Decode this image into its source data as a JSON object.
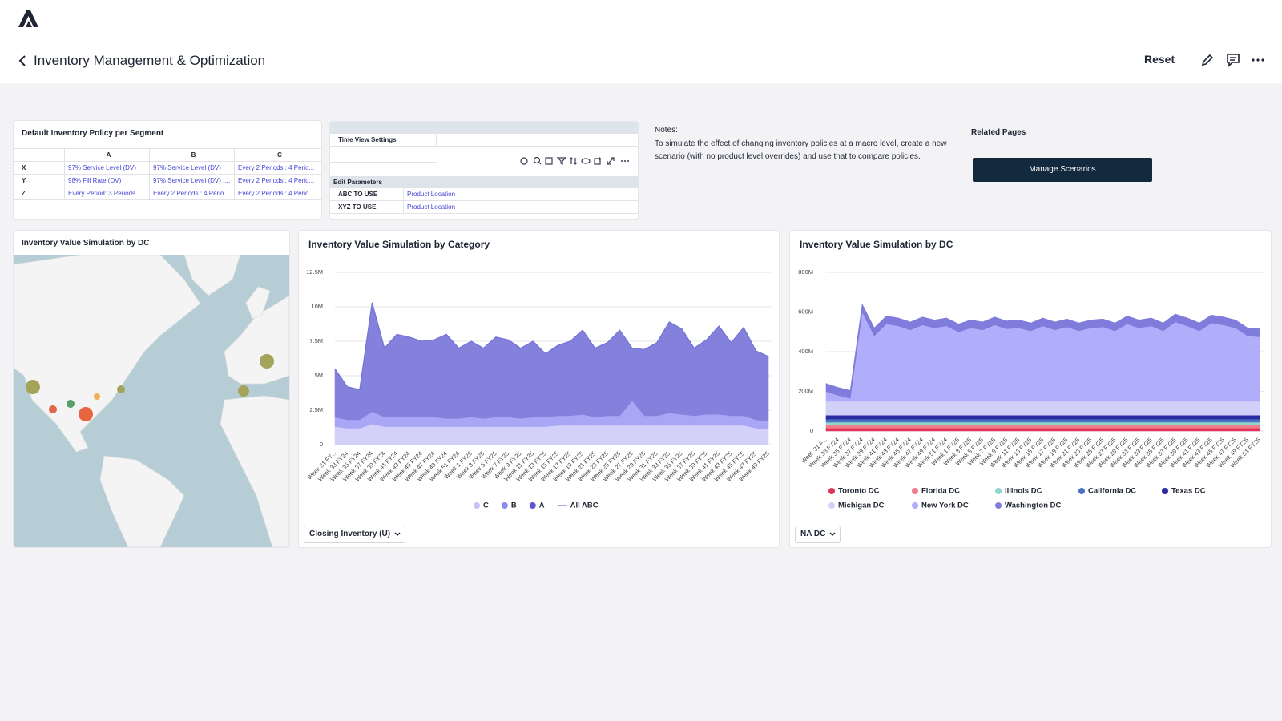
{
  "header": {
    "title": "Inventory Management & Optimization",
    "reset": "Reset"
  },
  "policy_table": {
    "title": "Default Inventory Policy per Segment",
    "columns": [
      "A",
      "B",
      "C"
    ],
    "rows": [
      {
        "segment": "X",
        "cells": [
          "97% Service Level (DV)",
          "97% Service Level (DV)",
          "Every 2 Periods : 4 Perio..."
        ]
      },
      {
        "segment": "Y",
        "cells": [
          "98% Fill Rate (DV)",
          "97% Service Level (DV) :...",
          "Every 2 Periods : 4 Perio..."
        ]
      },
      {
        "segment": "Z",
        "cells": [
          "Every Period: 3 Periods ...",
          "Every 2 Periods : 4 Perio...",
          "Every 2 Periods : 4 Perio..."
        ]
      }
    ]
  },
  "settings": {
    "time_view": "Time View Settings",
    "edit_parameters": "Edit Parameters",
    "parameters": [
      {
        "name": "ABC TO USE",
        "value": "Product Location"
      },
      {
        "name": "XYZ TO USE",
        "value": "Product Location"
      }
    ]
  },
  "notes": {
    "title": "Notes:",
    "text": "To simulate the effect of changing inventory policies at a macro level, create a new scenario (with no product level overrides) and use that to compare policies."
  },
  "related": {
    "title": "Related Pages",
    "button": "Manage Scenarios"
  },
  "map": {
    "title": "Inventory Value Simulation by DC"
  },
  "chart_data": [
    {
      "type": "area",
      "stacked": true,
      "title": "Inventory Value Simulation by Category",
      "dropdown": "Closing Inventory (U)",
      "categories": [
        "Week 31 FY...",
        "Week 33 FY24",
        "Week 35 FY24",
        "Week 37 FY24",
        "Week 39 FY24",
        "Week 41 FY24",
        "Week 43 FY24",
        "Week 45 FY24",
        "Week 47 FY24",
        "Week 49 FY24",
        "Week 51 FY24",
        "Week 1 FY25",
        "Week 3 FY25",
        "Week 5 FY25",
        "Week 7 FY25",
        "Week 9 FY25",
        "Week 11 FY25",
        "Week 13 FY25",
        "Week 15 FY25",
        "Week 17 FY25",
        "Week 19 FY25",
        "Week 21 FY25",
        "Week 23 FY25",
        "Week 25 FY25",
        "Week 27 FY25",
        "Week 29 FY25",
        "Week 31 FY25",
        "Week 33 FY25",
        "Week 35 FY25",
        "Week 37 FY25",
        "Week 39 FY25",
        "Week 41 FY25",
        "Week 43 FY25",
        "Week 45 FY25",
        "Week 47 FY25",
        "Week 49 FY25"
      ],
      "ylim": [
        0,
        12.5
      ],
      "yticks": [
        0,
        {
          "value": 2.5,
          "label": "2.5M"
        },
        {
          "value": 5,
          "label": "5M"
        },
        {
          "value": 7.5,
          "label": "7.5M"
        },
        {
          "value": 10,
          "label": "10M"
        },
        {
          "value": 12.5,
          "label": "12.5M"
        }
      ],
      "grid": true,
      "series": [
        {
          "name": "C",
          "color": "#d3d1fa",
          "legend_color": "#c4c2f8",
          "values": [
            1.3,
            1.2,
            1.2,
            1.5,
            1.3,
            1.3,
            1.3,
            1.3,
            1.3,
            1.3,
            1.3,
            1.3,
            1.3,
            1.3,
            1.3,
            1.3,
            1.3,
            1.3,
            1.4,
            1.4,
            1.4,
            1.4,
            1.4,
            1.4,
            1.4,
            1.4,
            1.4,
            1.4,
            1.4,
            1.4,
            1.4,
            1.4,
            1.4,
            1.4,
            1.2,
            1.1
          ]
        },
        {
          "name": "B",
          "color": "#a9a6f6",
          "legend_color": "#8d8af0",
          "values": [
            0.7,
            0.6,
            0.6,
            0.9,
            0.7,
            0.7,
            0.7,
            0.7,
            0.7,
            0.6,
            0.6,
            0.7,
            0.6,
            0.7,
            0.7,
            0.6,
            0.7,
            0.7,
            0.7,
            0.7,
            0.8,
            0.6,
            0.7,
            0.7,
            1.8,
            0.7,
            0.7,
            0.9,
            0.8,
            0.7,
            0.8,
            0.8,
            0.7,
            0.7,
            0.6,
            0.6
          ]
        },
        {
          "name": "A",
          "color": "#8481dc",
          "legend_color": "#5b57d1",
          "values": [
            3.5,
            2.4,
            2.2,
            7.9,
            5.0,
            6.0,
            5.8,
            5.5,
            5.6,
            6.1,
            5.1,
            5.5,
            5.1,
            5.8,
            5.6,
            5.1,
            5.5,
            4.6,
            5.1,
            5.4,
            6.1,
            5.0,
            5.3,
            6.2,
            3.8,
            4.8,
            5.3,
            6.6,
            6.2,
            4.9,
            5.4,
            6.4,
            5.3,
            6.4,
            5.0,
            4.7
          ]
        },
        {
          "name": "All ABC",
          "type": "line",
          "color": "#7471d6",
          "legend_color": "#a9a7ee",
          "values": [
            5.5,
            4.2,
            4.0,
            10.3,
            7.0,
            8.0,
            7.8,
            7.5,
            7.6,
            8.0,
            7.0,
            7.5,
            7.0,
            7.8,
            7.6,
            7.0,
            7.5,
            6.6,
            7.2,
            7.5,
            8.3,
            7.0,
            7.4,
            8.3,
            7.0,
            6.9,
            7.4,
            8.9,
            8.4,
            7.0,
            7.6,
            8.6,
            7.4,
            8.5,
            6.8,
            6.4
          ]
        }
      ]
    },
    {
      "type": "area",
      "stacked": true,
      "title": "Inventory Value Simulation by DC",
      "dropdown": "NA DC",
      "categories": [
        "Week 31 F...",
        "Week 33 FY24",
        "Week 35 FY24",
        "Week 37 FY24",
        "Week 39 FY24",
        "Week 41 FY24",
        "Week 43 FY24",
        "Week 45 FY24",
        "Week 47 FY24",
        "Week 49 FY24",
        "Week 51 FY24",
        "Week 1 FY25",
        "Week 3 FY25",
        "Week 5 FY25",
        "Week 7 FY25",
        "Week 9 FY25",
        "Week 11 FY25",
        "Week 13 FY25",
        "Week 15 FY25",
        "Week 17 FY25",
        "Week 19 FY25",
        "Week 21 FY25",
        "Week 23 FY25",
        "Week 25 FY25",
        "Week 27 FY25",
        "Week 29 FY25",
        "Week 31 FY25",
        "Week 33 FY25",
        "Week 35 FY25",
        "Week 37 FY25",
        "Week 39 FY25",
        "Week 41 FY25",
        "Week 43 FY25",
        "Week 45 FY25",
        "Week 47 FY25",
        "Week 49 FY25",
        "Week 51 FY25"
      ],
      "ylim": [
        0,
        800
      ],
      "yticks": [
        0,
        {
          "value": 200,
          "label": "200M"
        },
        {
          "value": 400,
          "label": "400M"
        },
        {
          "value": 600,
          "label": "600M"
        },
        {
          "value": 800,
          "label": "800M"
        }
      ],
      "grid": true,
      "series": [
        {
          "name": "Toronto DC",
          "color": "#e0335a",
          "values": [
            15,
            15,
            15,
            15,
            15,
            15,
            15,
            15,
            15,
            15,
            15,
            15,
            15,
            15,
            15,
            15,
            15,
            15,
            15,
            15,
            15,
            15,
            15,
            15,
            15,
            15,
            15,
            15,
            15,
            15,
            15,
            15,
            15,
            15,
            15,
            15,
            15
          ]
        },
        {
          "name": "Florida DC",
          "color": "#f07d8a",
          "values": [
            15,
            15,
            15,
            15,
            15,
            15,
            15,
            15,
            15,
            15,
            15,
            15,
            15,
            15,
            15,
            15,
            15,
            15,
            15,
            15,
            15,
            15,
            15,
            15,
            15,
            15,
            15,
            15,
            15,
            15,
            15,
            15,
            15,
            15,
            15,
            15,
            15
          ]
        },
        {
          "name": "Illinois DC",
          "color": "#93d4cf",
          "values": [
            15,
            15,
            15,
            15,
            15,
            15,
            15,
            15,
            15,
            15,
            15,
            15,
            15,
            15,
            15,
            15,
            15,
            15,
            15,
            15,
            15,
            15,
            15,
            15,
            15,
            15,
            15,
            15,
            15,
            15,
            15,
            15,
            15,
            15,
            15,
            15,
            15
          ]
        },
        {
          "name": "California DC",
          "color": "#4a6fc4",
          "values": [
            15,
            15,
            15,
            15,
            15,
            15,
            15,
            15,
            15,
            15,
            15,
            15,
            15,
            15,
            15,
            15,
            15,
            15,
            15,
            15,
            15,
            15,
            15,
            15,
            15,
            15,
            15,
            15,
            15,
            15,
            15,
            15,
            15,
            15,
            15,
            15,
            15
          ]
        },
        {
          "name": "Texas DC",
          "color": "#2b2ba3",
          "values": [
            20,
            20,
            20,
            20,
            20,
            20,
            20,
            20,
            20,
            20,
            20,
            20,
            20,
            20,
            20,
            20,
            20,
            20,
            20,
            20,
            20,
            20,
            20,
            20,
            20,
            20,
            20,
            20,
            20,
            20,
            20,
            20,
            20,
            20,
            20,
            20,
            20
          ]
        },
        {
          "name": "Michigan DC",
          "color": "#d2d0f9",
          "values": [
            70,
            70,
            70,
            70,
            70,
            70,
            70,
            70,
            70,
            70,
            70,
            70,
            70,
            70,
            70,
            70,
            70,
            70,
            70,
            70,
            70,
            70,
            70,
            70,
            70,
            70,
            70,
            70,
            70,
            70,
            70,
            70,
            70,
            70,
            70,
            70,
            70
          ]
        },
        {
          "name": "New York DC",
          "color": "#b0adfa",
          "values": [
            50,
            30,
            15,
            450,
            330,
            390,
            380,
            360,
            385,
            370,
            380,
            350,
            370,
            360,
            385,
            365,
            370,
            355,
            380,
            360,
            375,
            355,
            370,
            375,
            355,
            390,
            370,
            380,
            355,
            400,
            380,
            355,
            395,
            385,
            370,
            330,
            325
          ]
        },
        {
          "name": "Washington DC",
          "color": "#7f7cdc",
          "values": [
            40,
            40,
            40,
            40,
            40,
            40,
            40,
            40,
            40,
            40,
            40,
            40,
            40,
            40,
            40,
            40,
            40,
            40,
            40,
            40,
            40,
            40,
            40,
            40,
            40,
            40,
            40,
            40,
            40,
            40,
            40,
            40,
            40,
            40,
            40,
            40,
            40
          ]
        }
      ]
    }
  ]
}
